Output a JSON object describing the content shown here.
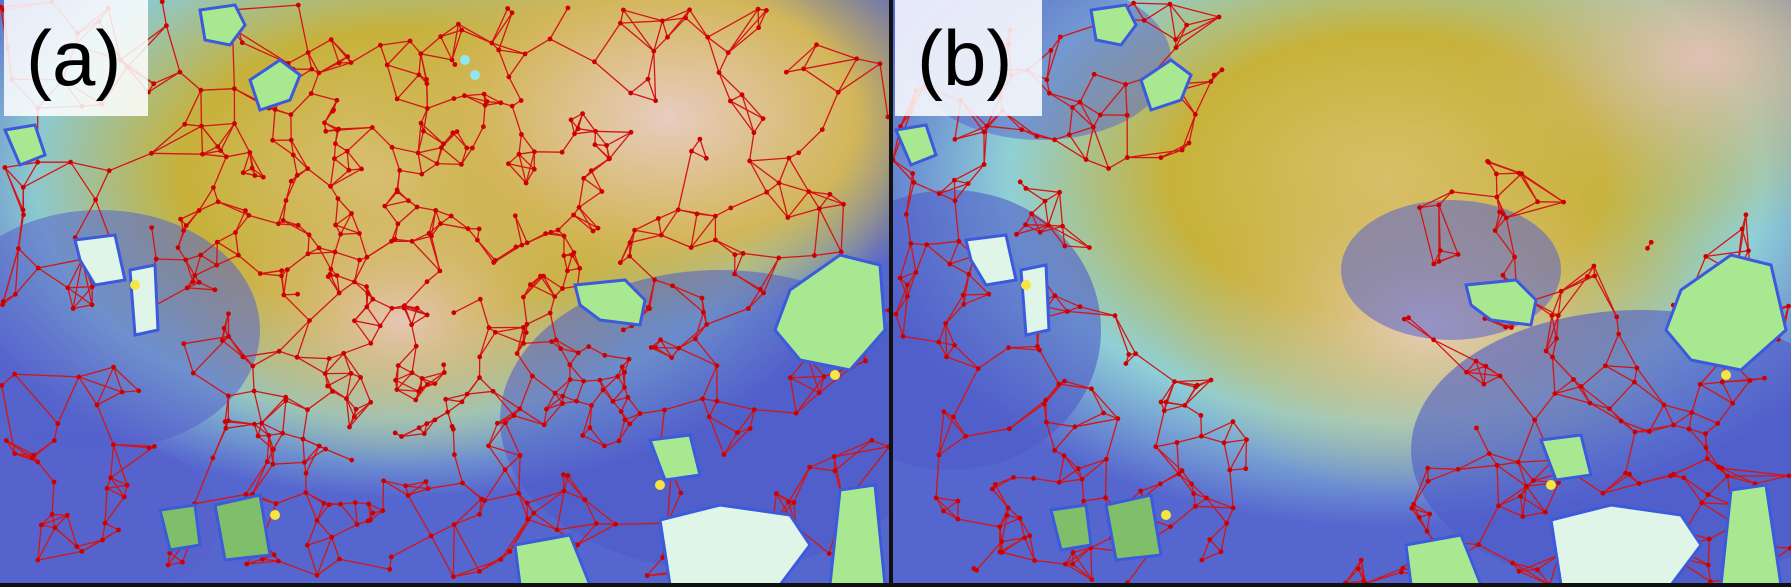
{
  "panels": [
    {
      "id": "a",
      "label": "(a)",
      "mesh_density": "dense-everywhere"
    },
    {
      "id": "b",
      "label": "(b)",
      "mesh_density": "sparse-near-islands"
    }
  ],
  "colors": {
    "mesh_edge": "#d41515",
    "mesh_node": "#cc0000",
    "deep_water": "#4a55c8",
    "mid_water": "#7aa7e0",
    "shallow": "#8fd6dc",
    "elevated": "#c8b02a",
    "high": "#e6c8b4",
    "island_fill": "#a8e890",
    "island_outline": "#3b5bdc",
    "island_point": "#f5e642",
    "glacier": "#dff5e8"
  },
  "icons": [
    "island-icon",
    "mesh-node-icon"
  ]
}
